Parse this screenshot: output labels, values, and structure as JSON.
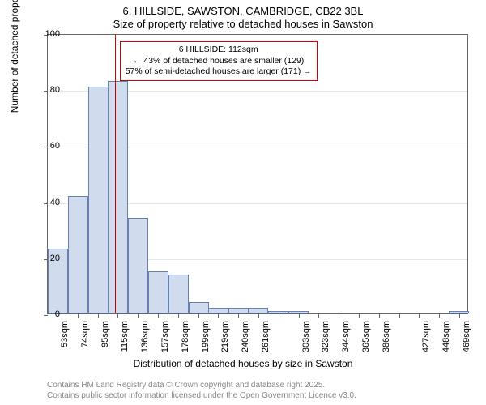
{
  "chart": {
    "type": "histogram",
    "title_main": "6, HILLSIDE, SAWSTON, CAMBRIDGE, CB22 3BL",
    "title_sub": "Size of property relative to detached houses in Sawston",
    "ylabel": "Number of detached properties",
    "xlabel": "Distribution of detached houses by size in Sawston",
    "ylim_max": 100,
    "yticks": [
      0,
      20,
      40,
      60,
      80,
      100
    ],
    "bar_fill": "#d0dbed",
    "bar_stroke": "#6680b3",
    "marker_color": "#cc0000",
    "background_color": "#ffffff",
    "bars": [
      {
        "x": 53,
        "h": 23
      },
      {
        "x": 74,
        "h": 42
      },
      {
        "x": 95,
        "h": 81
      },
      {
        "x": 115,
        "h": 83
      },
      {
        "x": 136,
        "h": 34
      },
      {
        "x": 157,
        "h": 15
      },
      {
        "x": 178,
        "h": 14
      },
      {
        "x": 199,
        "h": 4
      },
      {
        "x": 219,
        "h": 2
      },
      {
        "x": 240,
        "h": 2
      },
      {
        "x": 261,
        "h": 2
      },
      {
        "x": 282,
        "h": 1
      },
      {
        "x": 303,
        "h": 1
      },
      {
        "x": 323,
        "h": 0
      },
      {
        "x": 344,
        "h": 0
      },
      {
        "x": 365,
        "h": 0
      },
      {
        "x": 386,
        "h": 0
      },
      {
        "x": 407,
        "h": 0
      },
      {
        "x": 427,
        "h": 0
      },
      {
        "x": 448,
        "h": 0
      },
      {
        "x": 469,
        "h": 1
      }
    ],
    "x_tick_suffix": "sqm",
    "x_tick_skip": [
      282,
      407
    ],
    "marker_x": 112,
    "annotation": {
      "line1": "6 HILLSIDE: 112sqm",
      "line2": "← 43% of detached houses are smaller (129)",
      "line3": "57% of semi-detached houses are larger (171) →"
    },
    "footer1": "Contains HM Land Registry data © Crown copyright and database right 2025.",
    "footer2": "Contains public sector information licensed under the Open Government Licence v3.0."
  }
}
